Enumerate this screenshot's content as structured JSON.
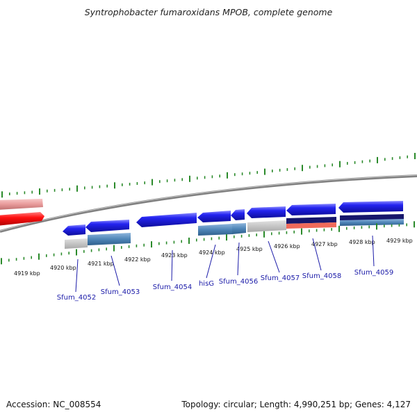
{
  "title": "Syntrophobacter fumaroxidans MPOB, complete genome",
  "accession": "Accession: NC_008554",
  "topology": "Topology: circular; Length: 4,990,251 bp; Genes: 4,127",
  "colors": {
    "backbone": "#8c8c8c",
    "tick": "#2a8a2a",
    "label": "#1a1aa8",
    "gene_blue": "#1a1ae6",
    "gene_red": "#ff1a1a",
    "gene_pink": "#e8a0a0",
    "bar_steel": "#4f86b8",
    "bar_gray": "#c4c4c4",
    "bar_navy": "#16166b",
    "bar_salmon": "#f06a5a"
  },
  "scale_labels": [
    "4919 kbp",
    "4920 kbp",
    "4921 kbp",
    "4922 kbp",
    "4923 kbp",
    "4924 kbp",
    "4925 kbp",
    "4926 kbp",
    "4927 kbp",
    "4928 kbp",
    "4929 kbp"
  ],
  "gene_labels": [
    "Sfum_4052",
    "Sfum_4053",
    "Sfum_4054",
    "hisG",
    "Sfum_4056",
    "Sfum_4057",
    "Sfum_4058",
    "Sfum_4059"
  ]
}
